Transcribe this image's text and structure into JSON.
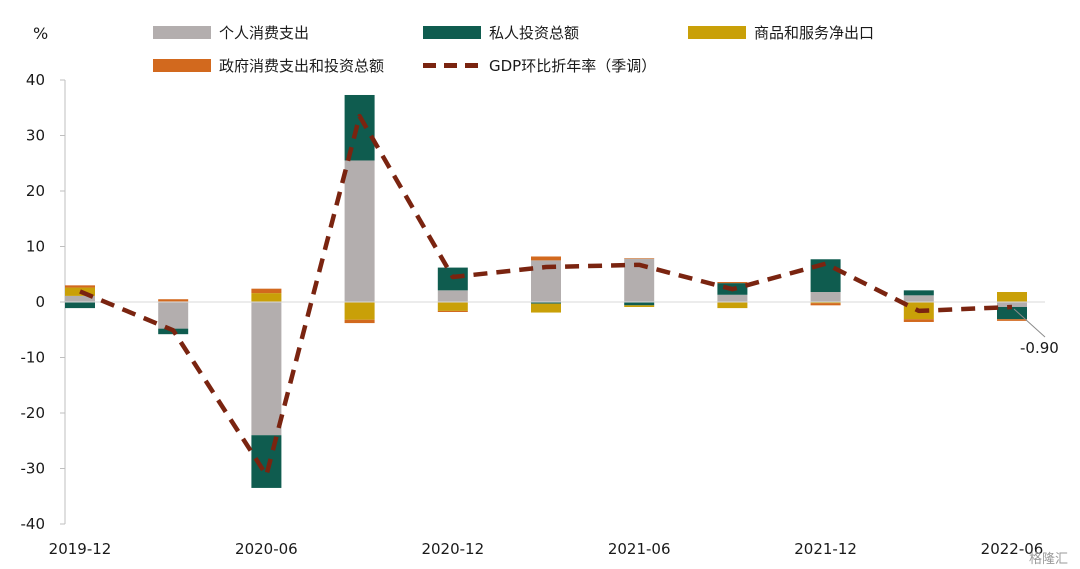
{
  "chart_data": {
    "type": "bar",
    "stacked": true,
    "unit_label": "%",
    "ylim": [
      -40,
      40
    ],
    "yticks": [
      40,
      30,
      20,
      10,
      0,
      -10,
      -20,
      -30,
      -40
    ],
    "xtick_labels": [
      {
        "label": "2019-12",
        "index": 0
      },
      {
        "label": "2020-06",
        "index": 2
      },
      {
        "label": "2020-12",
        "index": 4
      },
      {
        "label": "2021-06",
        "index": 6
      },
      {
        "label": "2021-12",
        "index": 8
      },
      {
        "label": "2022-06",
        "index": 10
      }
    ],
    "series": [
      {
        "name": "个人消费支出",
        "color": "#b3aeae",
        "values": [
          1.1,
          -4.8,
          -24.0,
          25.5,
          2.1,
          7.5,
          7.8,
          1.3,
          1.8,
          1.2,
          -0.9
        ]
      },
      {
        "name": "私人投资总额",
        "color": "#0f5c4f",
        "values": [
          -1.1,
          -1.0,
          -9.5,
          11.8,
          4.1,
          -0.3,
          -0.6,
          2.1,
          5.9,
          0.9,
          -2.2
        ]
      },
      {
        "name": "商品和服务净出口",
        "color": "#c9a008",
        "values": [
          1.5,
          0.1,
          1.6,
          -3.2,
          -1.6,
          -1.6,
          -0.3,
          -1.1,
          -0.2,
          -3.1,
          1.8
        ]
      },
      {
        "name": "政府消费支出和投资总额",
        "color": "#d2691e",
        "values": [
          0.4,
          0.4,
          0.8,
          -0.6,
          -0.2,
          0.7,
          0.1,
          0.2,
          -0.4,
          -0.5,
          -0.3
        ]
      }
    ],
    "line": {
      "name": "GDP环比折年率（季调）",
      "color": "#7a2410",
      "values": [
        1.9,
        -5.1,
        -31.2,
        33.5,
        4.5,
        6.3,
        6.7,
        2.3,
        6.9,
        -1.6,
        -0.9
      ]
    },
    "annotation": {
      "text": "-0.90",
      "index": 10,
      "value": -0.9
    },
    "legend_placement": "top",
    "grid": false
  },
  "watermark": "格隆汇"
}
